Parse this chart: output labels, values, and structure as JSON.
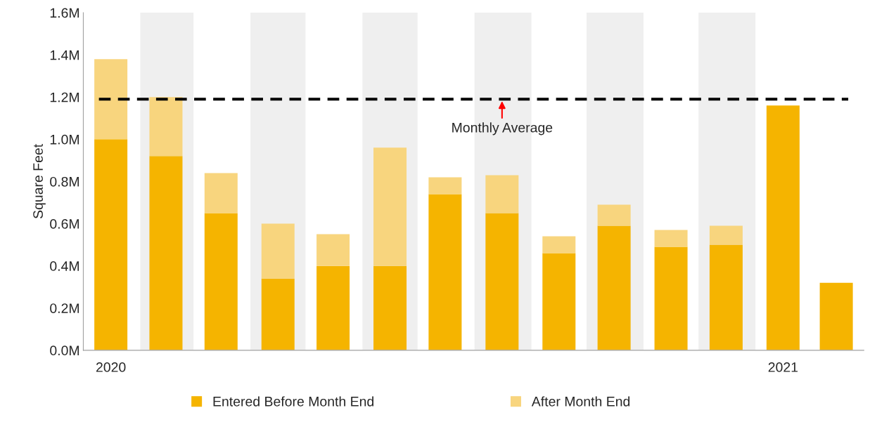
{
  "chart_data": {
    "type": "bar",
    "stacked": true,
    "ylabel": "Square Feet",
    "x": [
      "2020-01-16",
      "2020-02-15",
      "2020-03-16",
      "2020-04-16",
      "2020-05-16",
      "2020-06-16",
      "2020-07-16",
      "2020-08-16",
      "2020-09-16",
      "2020-10-16",
      "2020-11-16",
      "2020-12-16",
      "2021-01-16",
      "2021-02-14"
    ],
    "series": [
      {
        "name": "Entered Before Month End",
        "color": "#f5b400",
        "values": [
          1.0,
          0.92,
          0.65,
          0.34,
          0.4,
          0.4,
          0.74,
          0.65,
          0.46,
          0.59,
          0.49,
          0.5,
          1.16,
          0.32
        ]
      },
      {
        "name": "After Month End",
        "color": "#f8d57e",
        "values": [
          0.38,
          0.28,
          0.19,
          0.26,
          0.15,
          0.56,
          0.08,
          0.18,
          0.08,
          0.1,
          0.08,
          0.09,
          0,
          0
        ]
      }
    ],
    "xlim": [
      "2020-01-01",
      "2021-03-01"
    ],
    "xticks": [
      {
        "value": "2020-01-16",
        "label": "2020"
      },
      {
        "value": "2021-01-16",
        "label": "2021"
      }
    ],
    "ylim": [
      0,
      1.6
    ],
    "yticks": [
      {
        "value": 0,
        "label": "0.0M"
      },
      {
        "value": 0.2,
        "label": "0.2M"
      },
      {
        "value": 0.4,
        "label": "0.4M"
      },
      {
        "value": 0.6,
        "label": "0.6M"
      },
      {
        "value": 0.8,
        "label": "0.8M"
      },
      {
        "value": 1.0,
        "label": "1.0M"
      },
      {
        "value": 1.2,
        "label": "1.2M"
      },
      {
        "value": 1.4,
        "label": "1.4M"
      },
      {
        "value": 1.6,
        "label": "1.6M"
      }
    ],
    "ref_lines": [
      {
        "axis": "y",
        "value": 1.19,
        "color": "#000000",
        "line_style": "dashed"
      }
    ],
    "bands": [
      {
        "axis": "x",
        "from": "2020-02-01",
        "to": "2020-03-01",
        "color": "#efefef"
      },
      {
        "axis": "x",
        "from": "2020-04-01",
        "to": "2020-05-01",
        "color": "#efefef"
      },
      {
        "axis": "x",
        "from": "2020-06-01",
        "to": "2020-07-01",
        "color": "#efefef"
      },
      {
        "axis": "x",
        "from": "2020-08-01",
        "to": "2020-09-01",
        "color": "#efefef"
      },
      {
        "axis": "x",
        "from": "2020-10-01",
        "to": "2020-11-01",
        "color": "#efefef"
      },
      {
        "axis": "x",
        "from": "2020-12-01",
        "to": "2021-01-01",
        "color": "#efefef"
      }
    ],
    "annotations": [
      {
        "text": "Monthly Average",
        "x": "2020-08-16",
        "y": 1.19
      }
    ],
    "grid": false,
    "legend": "bottom"
  }
}
